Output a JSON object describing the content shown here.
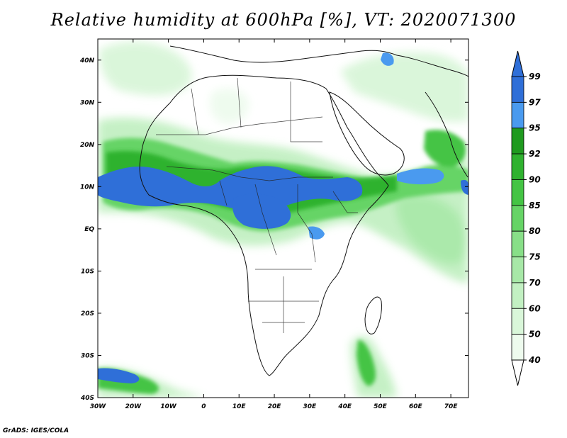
{
  "title": "Relative humidity at 600hPa [%], VT: 2020071300",
  "credit": "GrADS: IGES/COLA",
  "map": {
    "lon_ticks": [
      "30W",
      "20W",
      "10W",
      "0",
      "10E",
      "20E",
      "30E",
      "40E",
      "50E",
      "60E",
      "70E"
    ],
    "lat_ticks": [
      "40N",
      "30N",
      "20N",
      "10N",
      "EQ",
      "10S",
      "20S",
      "30S",
      "40S"
    ],
    "lon_range": [
      -30,
      75
    ],
    "lat_range": [
      -40,
      45
    ]
  },
  "colorbar": {
    "labels": [
      "99",
      "97",
      "95",
      "92",
      "90",
      "85",
      "80",
      "75",
      "70",
      "60",
      "50",
      "40"
    ],
    "bins": [
      {
        "low": 97,
        "high": 99,
        "color": "#2f6fd8"
      },
      {
        "low": 95,
        "high": 97,
        "color": "#4a9aef"
      },
      {
        "low": 92,
        "high": 95,
        "color": "#1f9a1f"
      },
      {
        "low": 90,
        "high": 92,
        "color": "#2fb22f"
      },
      {
        "low": 85,
        "high": 90,
        "color": "#44c444"
      },
      {
        "low": 80,
        "high": 85,
        "color": "#66d466"
      },
      {
        "low": 75,
        "high": 80,
        "color": "#88df88"
      },
      {
        "low": 70,
        "high": 75,
        "color": "#a7e8a7"
      },
      {
        "low": 60,
        "high": 70,
        "color": "#c2f0c2"
      },
      {
        "low": 50,
        "high": 60,
        "color": "#d9f6d9"
      },
      {
        "low": 40,
        "high": 50,
        "color": "#eefbee"
      }
    ],
    "top_triangle_color": "#2f6fd8",
    "bottom_triangle_color": "#ffffff"
  }
}
